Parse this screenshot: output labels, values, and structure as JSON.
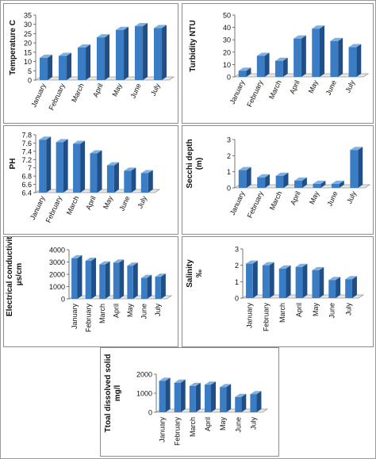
{
  "colors": {
    "bar_front": "#3a7dc4",
    "bar_side": "#1f4f86",
    "bar_top": "#7fb0e2",
    "floor": "#e6e6e6",
    "floor_edge": "#9a9a9a",
    "axis": "#555555"
  },
  "chart_data": [
    {
      "type": "bar",
      "ylabel": "Temperature C",
      "categories": [
        "January",
        "February",
        "March",
        "April",
        "May",
        "June",
        "July"
      ],
      "values": [
        12,
        13,
        17.5,
        23,
        27,
        29,
        28
      ],
      "ylim": [
        0,
        35
      ],
      "yticks": [
        "0",
        "5",
        "10",
        "15",
        "20",
        "25",
        "30",
        "35"
      ],
      "yticks_values": [
        0,
        5,
        10,
        15,
        20,
        25,
        30,
        35
      ]
    },
    {
      "type": "bar",
      "ylabel": "Turbidity NTU",
      "categories": [
        "January",
        "February",
        "March",
        "April",
        "May",
        "June",
        "July"
      ],
      "values": [
        5,
        17,
        13,
        31,
        39,
        29,
        24
      ],
      "ylim": [
        0,
        50
      ],
      "yticks": [
        "0",
        "10",
        "20",
        "30",
        "40",
        "50"
      ],
      "yticks_values": [
        0,
        10,
        20,
        30,
        40,
        50
      ]
    },
    {
      "type": "bar",
      "ylabel": "PH",
      "categories": [
        "January",
        "February",
        "March",
        "April",
        "May",
        "June",
        "July"
      ],
      "values": [
        7.68,
        7.62,
        7.58,
        7.35,
        7.06,
        6.93,
        6.87
      ],
      "ylim": [
        6.4,
        7.8
      ],
      "yticks": [
        "6.4",
        "6.6",
        "6.8",
        "7",
        "7.2",
        "7.4",
        "7.6",
        "7.8"
      ],
      "yticks_values": [
        6.4,
        6.6,
        6.8,
        7.0,
        7.2,
        7.4,
        7.6,
        7.8
      ]
    },
    {
      "type": "bar",
      "ylabel": "Secchi depth",
      "ylabel2": "(m)",
      "categories": [
        "January",
        "February",
        "March",
        "April",
        "May",
        "June",
        "July"
      ],
      "values": [
        1.1,
        0.65,
        0.75,
        0.45,
        0.25,
        0.25,
        2.35
      ],
      "ylim": [
        0,
        3
      ],
      "yticks": [
        "0",
        "1",
        "2",
        "3"
      ],
      "yticks_values": [
        0,
        1,
        2,
        3
      ]
    },
    {
      "type": "bar",
      "ylabel": "Electrical conductivity",
      "ylabel2": "µs/cm",
      "categories": [
        "January",
        "February",
        "March",
        "April",
        "May",
        "June",
        "July"
      ],
      "values": [
        3300,
        3100,
        2800,
        2950,
        2700,
        1700,
        1800
      ],
      "ylim": [
        0,
        4000
      ],
      "yticks": [
        "0",
        "1000",
        "2000",
        "3000",
        "4000"
      ],
      "yticks_values": [
        0,
        1000,
        2000,
        3000,
        4000
      ]
    },
    {
      "type": "bar",
      "ylabel": "Salinity",
      "ylabel2": "‰",
      "categories": [
        "January",
        "February",
        "March",
        "April",
        "May",
        "June",
        "July"
      ],
      "values": [
        2.1,
        2.0,
        1.8,
        1.9,
        1.7,
        1.1,
        1.15
      ],
      "ylim": [
        0,
        3
      ],
      "yticks": [
        "0",
        "1",
        "2",
        "3"
      ],
      "yticks_values": [
        0,
        1,
        2,
        3
      ]
    },
    {
      "type": "bar",
      "ylabel": "Ttoal dissolved solid",
      "ylabel2": "mg/l",
      "categories": [
        "January",
        "February",
        "March",
        "April",
        "May",
        "June",
        "July"
      ],
      "values": [
        1650,
        1550,
        1380,
        1450,
        1320,
        800,
        950
      ],
      "ylim": [
        0,
        2000
      ],
      "yticks": [
        "0",
        "1000",
        "2000"
      ],
      "yticks_values": [
        0,
        1000,
        2000
      ]
    }
  ]
}
